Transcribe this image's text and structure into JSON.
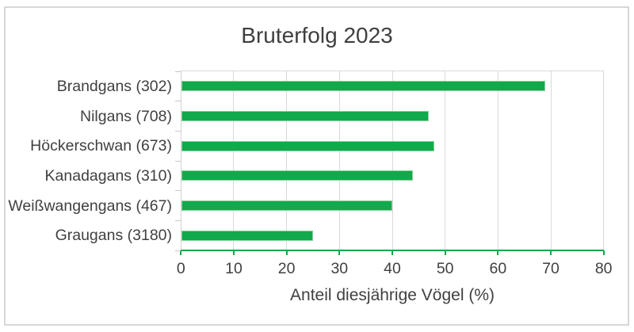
{
  "frame": {
    "background": "#ffffff",
    "border_color": "#d7d7d7"
  },
  "chart_data": {
    "type": "bar",
    "orientation": "horizontal",
    "title": "Bruterfolg 2023",
    "xlabel": "Anteil diesjährige Vögel (%)",
    "categories": [
      "Brandgans (302)",
      "Nilgans (708)",
      "Höckerschwan (673)",
      "Kanadagans (310)",
      "Weißwangengans (467)",
      "Graugans (3180)"
    ],
    "values": [
      69,
      47,
      48,
      44,
      40,
      25
    ],
    "sample_sizes": [
      302,
      708,
      673,
      310,
      467,
      3180
    ],
    "xlim": [
      0,
      80
    ],
    "xticks": [
      0,
      10,
      20,
      30,
      40,
      50,
      60,
      70,
      80
    ],
    "grid": "vertical-only",
    "legend_position": "none",
    "colors": {
      "bar": "#11a94b",
      "bar_edge": "#8ad49a",
      "axis_line": "#11a94b",
      "gridline": "#d9d9d9",
      "category_axis": "#d2d2d2",
      "category_tick": "#c8c8c8",
      "text": "#404040"
    }
  }
}
